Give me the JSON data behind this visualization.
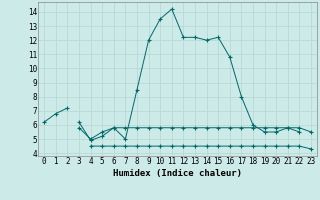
{
  "xlabel": "Humidex (Indice chaleur)",
  "xlim": [
    -0.5,
    23.5
  ],
  "ylim": [
    3.8,
    14.7
  ],
  "yticks": [
    4,
    5,
    6,
    7,
    8,
    9,
    10,
    11,
    12,
    13,
    14
  ],
  "xticks": [
    0,
    1,
    2,
    3,
    4,
    5,
    6,
    7,
    8,
    9,
    10,
    11,
    12,
    13,
    14,
    15,
    16,
    17,
    18,
    19,
    20,
    21,
    22,
    23
  ],
  "bg_color": "#cceae8",
  "grid_color": "#b8d8d6",
  "line_color": "#006868",
  "series1_x": [
    0,
    1,
    2
  ],
  "series1_y": [
    6.2,
    6.8,
    7.2
  ],
  "series2_x": [
    3,
    4,
    5,
    6,
    7,
    8,
    9,
    10,
    11,
    12,
    13,
    14,
    15,
    16,
    17,
    18,
    19,
    20,
    21,
    22
  ],
  "series2_y": [
    6.2,
    4.9,
    5.2,
    5.8,
    5.0,
    8.5,
    12.0,
    13.5,
    14.2,
    12.2,
    12.2,
    12.0,
    12.2,
    10.8,
    8.0,
    6.0,
    5.5,
    5.5,
    5.8,
    5.5
  ],
  "series3_x": [
    3,
    4,
    5,
    6,
    7,
    8,
    9,
    10,
    11,
    12,
    13,
    14,
    15,
    16,
    17,
    18,
    19,
    20,
    21,
    22,
    23
  ],
  "series3_y": [
    5.8,
    5.0,
    5.5,
    5.8,
    5.8,
    5.8,
    5.8,
    5.8,
    5.8,
    5.8,
    5.8,
    5.8,
    5.8,
    5.8,
    5.8,
    5.8,
    5.8,
    5.8,
    5.8,
    5.8,
    5.5
  ],
  "series4_x": [
    4,
    5,
    6,
    7,
    8,
    9,
    10,
    11,
    12,
    13,
    14,
    15,
    16,
    17,
    18,
    19,
    20,
    21,
    22,
    23
  ],
  "series4_y": [
    4.5,
    4.5,
    4.5,
    4.5,
    4.5,
    4.5,
    4.5,
    4.5,
    4.5,
    4.5,
    4.5,
    4.5,
    4.5,
    4.5,
    4.5,
    4.5,
    4.5,
    4.5,
    4.5,
    4.3
  ],
  "tick_fontsize": 5.5,
  "label_fontsize": 6.5
}
